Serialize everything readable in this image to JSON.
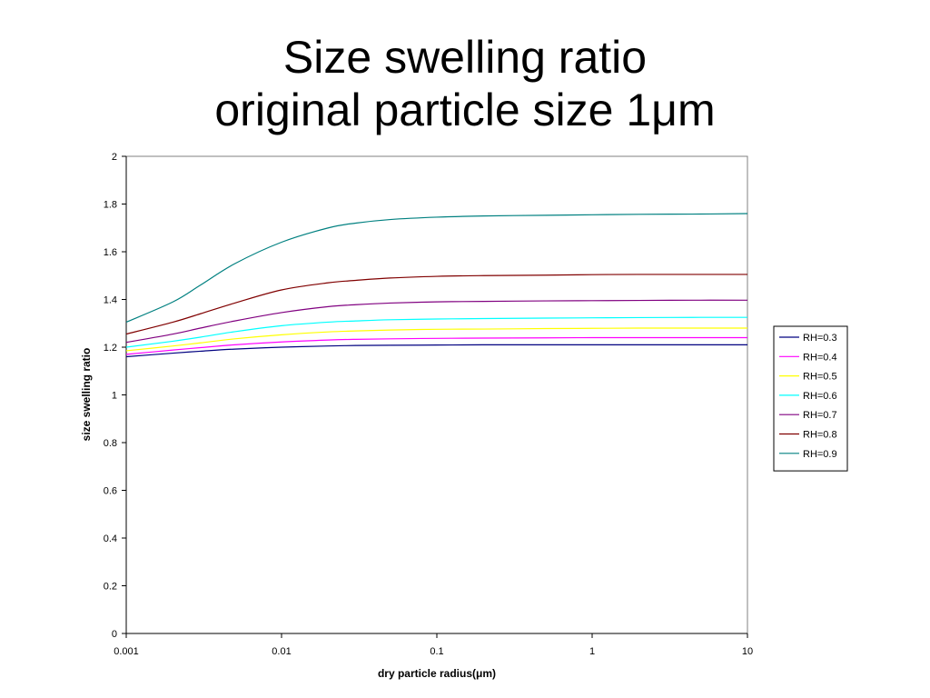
{
  "slide": {
    "title_line1": "Size swelling ratio",
    "title_line2": "original particle size 1μm"
  },
  "chart_data": {
    "type": "line",
    "xscale": "log",
    "xlim": [
      0.001,
      10
    ],
    "ylim": [
      0,
      2
    ],
    "xticks": [
      "0.001",
      "0.01",
      "0.1",
      "1",
      "10"
    ],
    "yticks": [
      "0",
      "0.2",
      "0.4",
      "0.6",
      "0.8",
      "1",
      "1.2",
      "1.4",
      "1.6",
      "1.8",
      "2"
    ],
    "xlabel": "dry particle radius(μm)",
    "ylabel": "size swelling ratio",
    "grid": false,
    "legend_position": "right",
    "x": [
      0.001,
      0.002,
      0.003,
      0.005,
      0.01,
      0.02,
      0.03,
      0.05,
      0.1,
      0.2,
      0.5,
      1,
      2,
      5,
      10
    ],
    "series": [
      {
        "name": "RH=0.3",
        "color": "#000080",
        "values": [
          1.16,
          1.175,
          1.183,
          1.192,
          1.2,
          1.205,
          1.207,
          1.208,
          1.209,
          1.21,
          1.21,
          1.21,
          1.21,
          1.21,
          1.21
        ]
      },
      {
        "name": "RH=0.4",
        "color": "#FF00FF",
        "values": [
          1.17,
          1.188,
          1.198,
          1.21,
          1.222,
          1.23,
          1.233,
          1.235,
          1.237,
          1.238,
          1.239,
          1.24,
          1.24,
          1.24,
          1.24
        ]
      },
      {
        "name": "RH=0.5",
        "color": "#FFFF00",
        "values": [
          1.185,
          1.205,
          1.218,
          1.235,
          1.252,
          1.264,
          1.268,
          1.272,
          1.275,
          1.276,
          1.278,
          1.279,
          1.28,
          1.28,
          1.28
        ]
      },
      {
        "name": "RH=0.6",
        "color": "#00FFFF",
        "values": [
          1.2,
          1.225,
          1.242,
          1.265,
          1.29,
          1.305,
          1.31,
          1.315,
          1.318,
          1.32,
          1.322,
          1.323,
          1.324,
          1.325,
          1.325
        ]
      },
      {
        "name": "RH=0.7",
        "color": "#800080",
        "values": [
          1.22,
          1.255,
          1.28,
          1.31,
          1.345,
          1.37,
          1.378,
          1.385,
          1.39,
          1.392,
          1.394,
          1.395,
          1.396,
          1.397,
          1.397
        ]
      },
      {
        "name": "RH=0.8",
        "color": "#800000",
        "values": [
          1.255,
          1.305,
          1.34,
          1.385,
          1.44,
          1.47,
          1.48,
          1.49,
          1.497,
          1.5,
          1.502,
          1.504,
          1.505,
          1.505,
          1.505
        ]
      },
      {
        "name": "RH=0.9",
        "color": "#008080",
        "values": [
          1.305,
          1.39,
          1.46,
          1.55,
          1.64,
          1.7,
          1.72,
          1.735,
          1.745,
          1.75,
          1.753,
          1.755,
          1.757,
          1.758,
          1.76
        ]
      }
    ]
  }
}
